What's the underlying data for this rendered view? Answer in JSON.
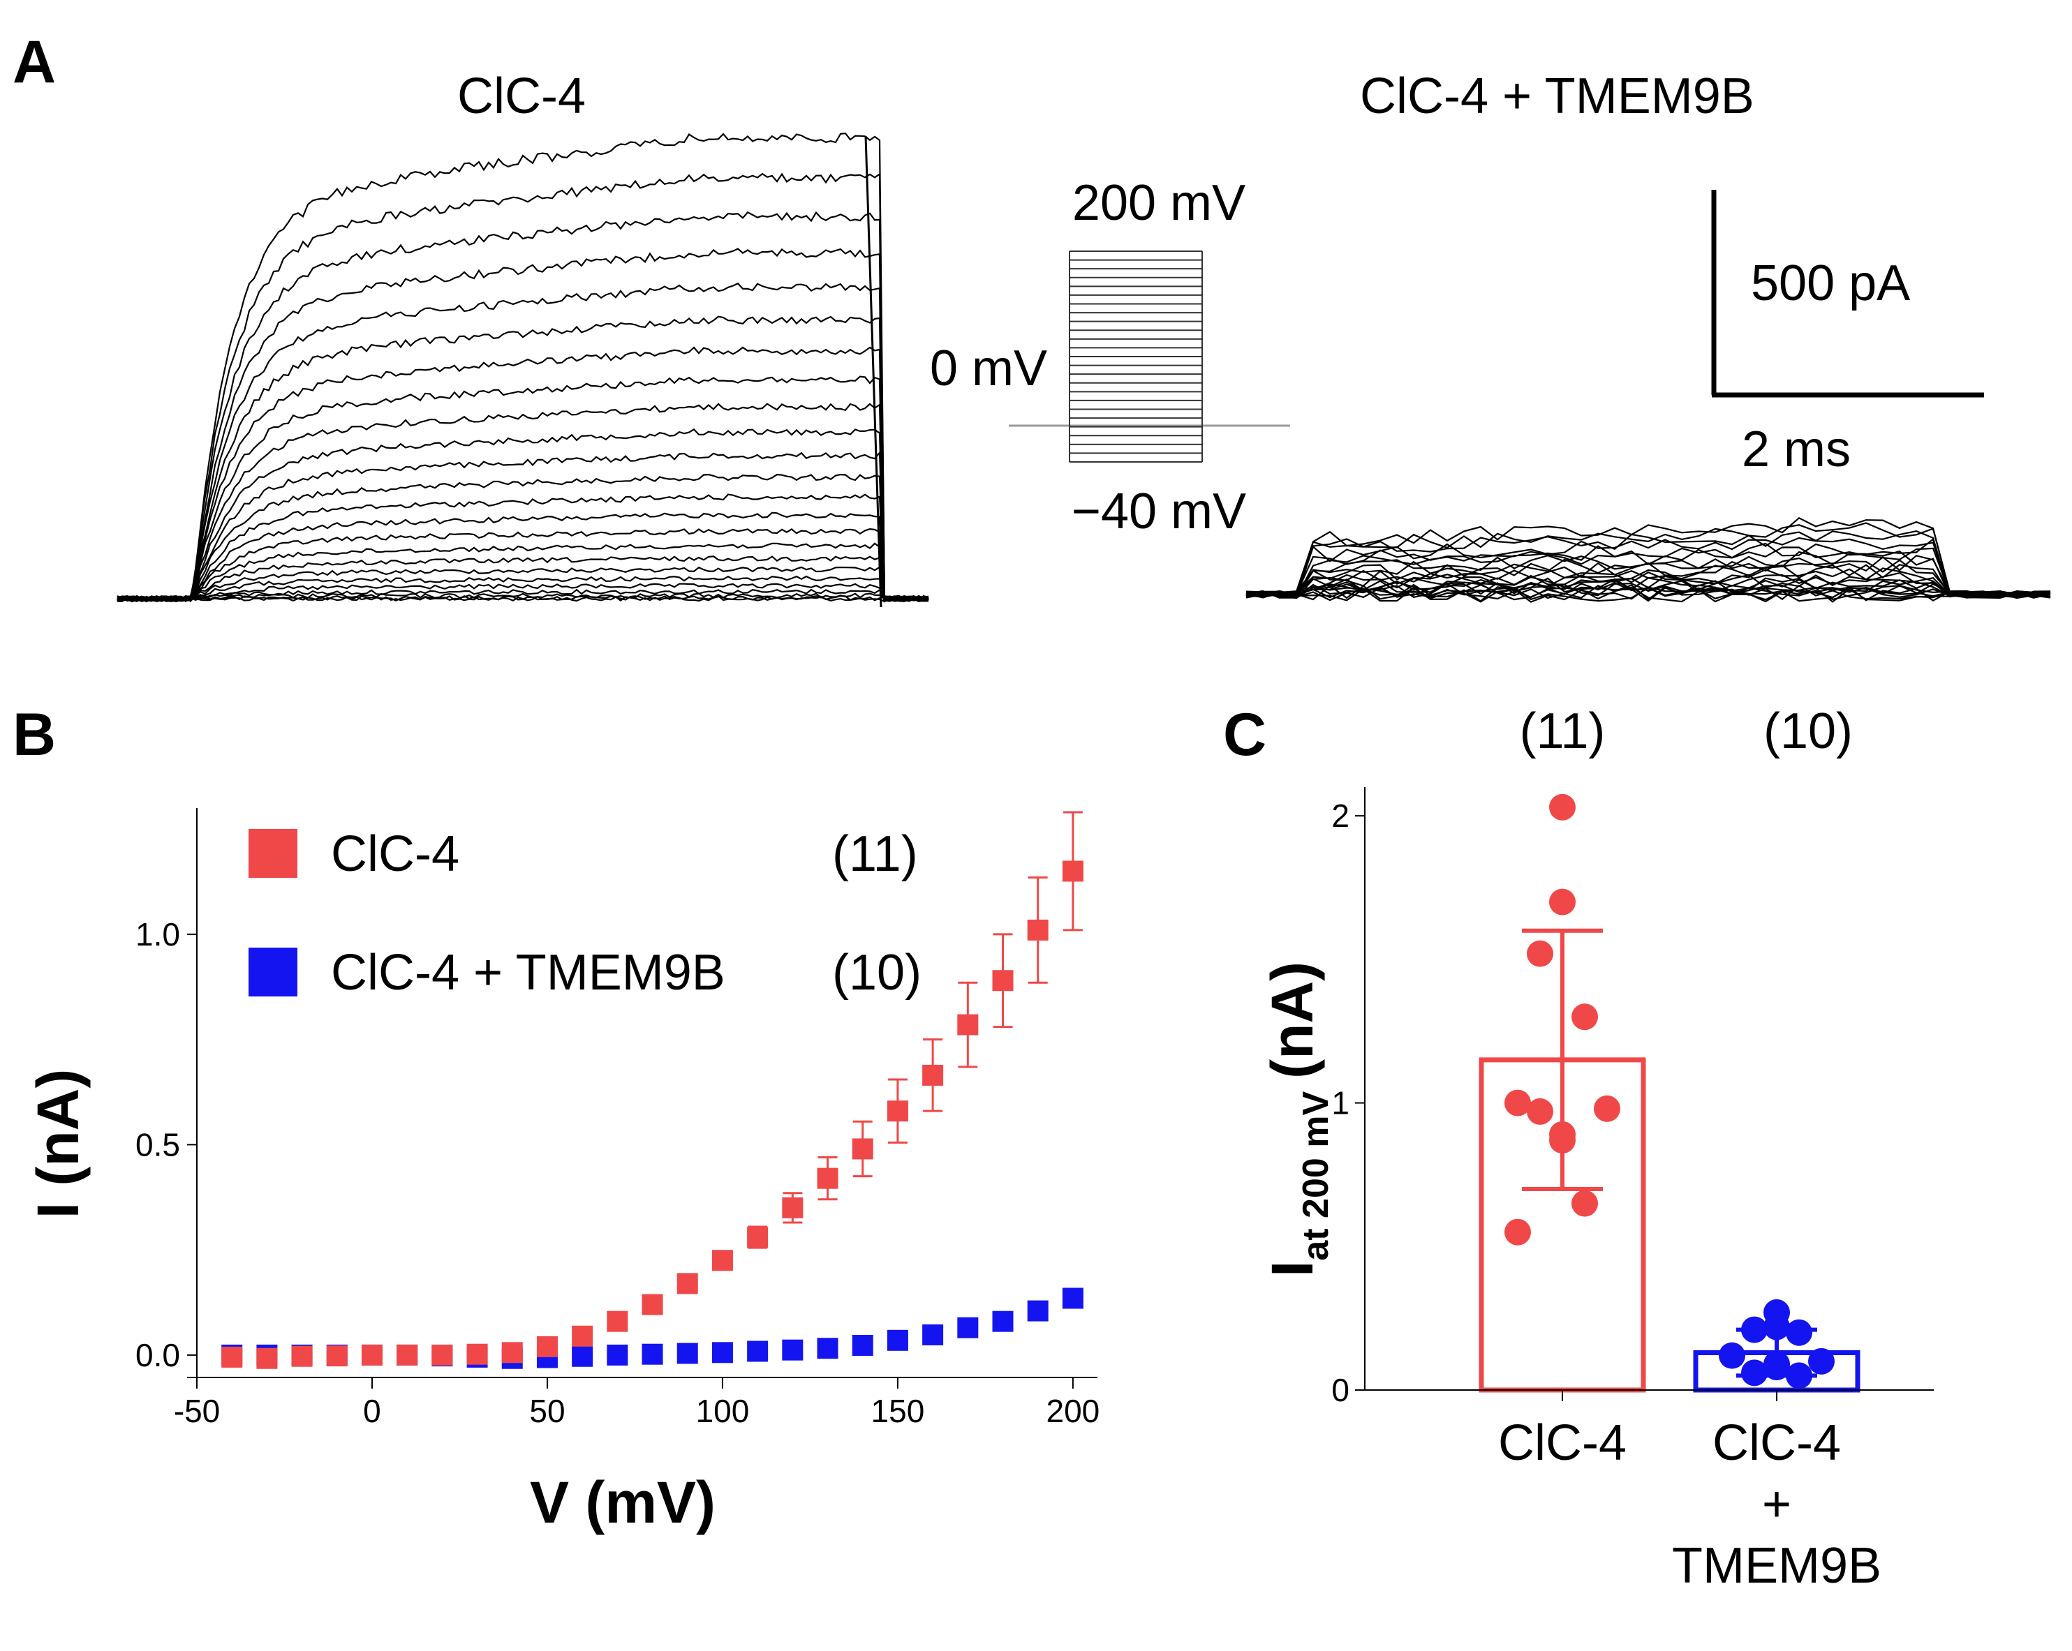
{
  "colors": {
    "red": "#f04848",
    "blue": "#1414f0",
    "black": "#000000",
    "gray": "#9a9a9a"
  },
  "panel_a": {
    "letter": "A",
    "left_title": "ClC-4",
    "right_title": "ClC-4 + TMEM9B",
    "protocol_top": "200 mV",
    "protocol_hold": "0 mV",
    "protocol_bottom": "−40 mV",
    "scale_y": "500 pA",
    "scale_x": "2 ms"
  },
  "panel_b": {
    "letter": "B"
  },
  "panel_c": {
    "letter": "C",
    "n_left": "(11)",
    "n_right": "(10)"
  },
  "chart_data": [
    {
      "type": "scatter",
      "panel": "B",
      "xlabel": "V (mV)",
      "ylabel": "I (nA)",
      "xlim": [
        -50,
        205
      ],
      "ylim": [
        -0.03,
        1.3
      ],
      "xticks": [
        -50,
        0,
        50,
        100,
        150,
        200
      ],
      "xtick_labels": [
        "-50",
        "0",
        "50",
        "100",
        "150",
        "200"
      ],
      "yticks": [
        0.0,
        0.5,
        1.0
      ],
      "ytick_labels": [
        "0.0",
        "0.5",
        "1.0"
      ],
      "legend_position": "top-left",
      "x": [
        -40,
        -30,
        -20,
        -10,
        0,
        10,
        20,
        30,
        40,
        50,
        60,
        70,
        80,
        90,
        100,
        110,
        120,
        130,
        140,
        150,
        160,
        170,
        180,
        190,
        200
      ],
      "series": [
        {
          "name": "ClC-4",
          "n": "(11)",
          "color": "#f04848",
          "values": [
            -0.005,
            -0.008,
            -0.003,
            -0.002,
            0.0,
            0.0,
            0.0,
            0.002,
            0.006,
            0.02,
            0.045,
            0.08,
            0.12,
            0.17,
            0.225,
            0.28,
            0.35,
            0.42,
            0.49,
            0.58,
            0.665,
            0.785,
            0.89,
            1.01,
            1.15
          ],
          "errors": [
            0,
            0,
            0,
            0,
            0,
            0,
            0,
            0,
            0,
            0,
            0,
            0,
            0,
            0,
            0.015,
            0.025,
            0.035,
            0.05,
            0.065,
            0.075,
            0.085,
            0.1,
            0.11,
            0.125,
            0.14
          ]
        },
        {
          "name": "ClC-4 + TMEM9B",
          "n": "(10)",
          "color": "#1414f0",
          "values": [
            0.0,
            0.0,
            0.0,
            0.0,
            0.0,
            0.0,
            -0.002,
            -0.005,
            -0.008,
            -0.006,
            -0.003,
            0.0,
            0.002,
            0.004,
            0.006,
            0.009,
            0.012,
            0.016,
            0.023,
            0.035,
            0.048,
            0.065,
            0.08,
            0.105,
            0.135
          ],
          "errors": [
            0,
            0,
            0,
            0,
            0,
            0,
            0,
            0,
            0,
            0,
            0,
            0,
            0,
            0,
            0,
            0,
            0,
            0,
            0,
            0,
            0,
            0,
            0,
            0,
            0
          ]
        }
      ]
    },
    {
      "type": "bar",
      "panel": "C",
      "ylabel": "I",
      "ylabel_sub": "at 200 mV",
      "ylabel_unit": "(nA)",
      "ylim": [
        0,
        2.1
      ],
      "yticks": [
        0,
        1,
        2
      ],
      "ytick_labels": [
        "0",
        "1",
        "2"
      ],
      "categories": [
        "ClC-4",
        "ClC-4 + TMEM9B"
      ],
      "category_lines": [
        [
          "ClC-4"
        ],
        [
          "ClC-4",
          "+",
          "TMEM9B"
        ]
      ],
      "n": [
        "(11)",
        "(10)"
      ],
      "colors": [
        "#f04848",
        "#1414f0"
      ],
      "means": [
        1.15,
        0.13
      ],
      "sd": [
        0.45,
        0.08
      ],
      "points": [
        [
          2.03,
          1.7,
          1.52,
          1.3,
          1.0,
          0.98,
          0.89,
          0.87,
          0.97,
          0.65,
          0.55
        ],
        [
          0.27,
          0.22,
          0.21,
          0.2,
          0.12,
          0.1,
          0.09,
          0.08,
          0.06,
          0.05
        ]
      ]
    }
  ]
}
